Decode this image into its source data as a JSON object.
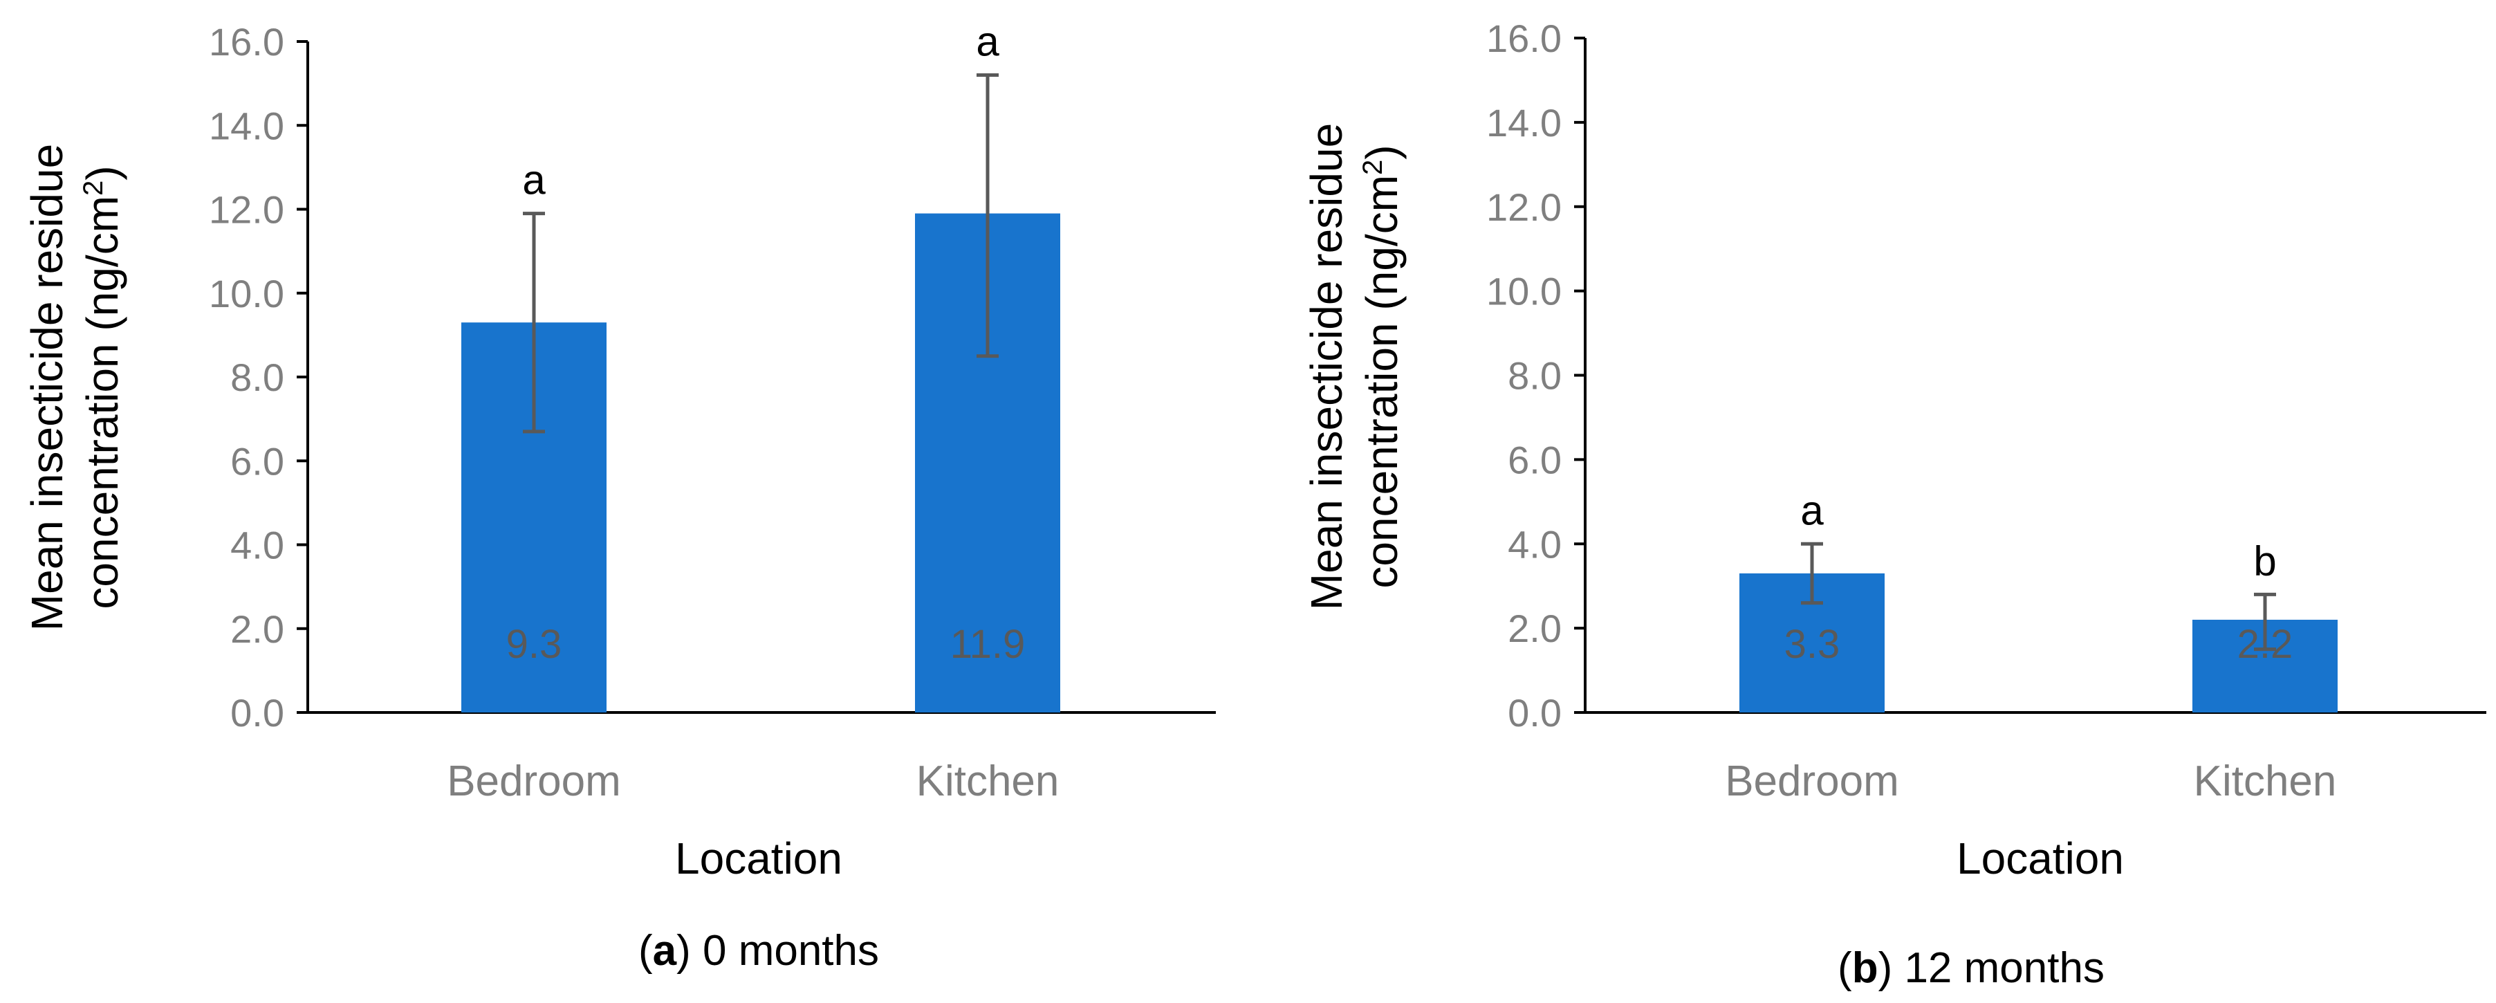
{
  "colors": {
    "bar": "#1874CD",
    "error_bar": "#595959",
    "axis": "#000000"
  },
  "chart_data": [
    {
      "type": "bar",
      "categories": [
        "Bedroom",
        "Kitchen"
      ],
      "values": [
        9.3,
        11.9
      ],
      "data_labels": [
        "9.3",
        "11.9"
      ],
      "error_upper": [
        11.9,
        15.2
      ],
      "error_lower": [
        6.7,
        8.5
      ],
      "significance": [
        "a",
        "a"
      ],
      "ylim": [
        0,
        16
      ],
      "yticks": [
        "0.0",
        "2.0",
        "4.0",
        "6.0",
        "8.0",
        "10.0",
        "12.0",
        "14.0",
        "16.0"
      ],
      "ylabel_line1": "Mean insecticide residue",
      "ylabel_line2": "concentration (ng/cm",
      "ylabel_sup": "2",
      "ylabel_close": ")",
      "xlabel": "Location",
      "caption_letter": "a",
      "caption_text": " 0 months"
    },
    {
      "type": "bar",
      "categories": [
        "Bedroom",
        "Kitchen"
      ],
      "values": [
        3.3,
        2.2
      ],
      "data_labels": [
        "3.3",
        "2.2"
      ],
      "error_upper": [
        4.0,
        2.8
      ],
      "error_lower": [
        2.6,
        1.5
      ],
      "significance": [
        "a",
        "b"
      ],
      "ylim": [
        0,
        16
      ],
      "yticks": [
        "0.0",
        "2.0",
        "4.0",
        "6.0",
        "8.0",
        "10.0",
        "12.0",
        "14.0",
        "16.0"
      ],
      "ylabel_line1": "Mean insecticide residue",
      "ylabel_line2": "concentration (ng/cm",
      "ylabel_sup": "2",
      "ylabel_close": ")",
      "xlabel": "Location",
      "caption_letter": "b",
      "caption_text": " 12 months"
    }
  ]
}
